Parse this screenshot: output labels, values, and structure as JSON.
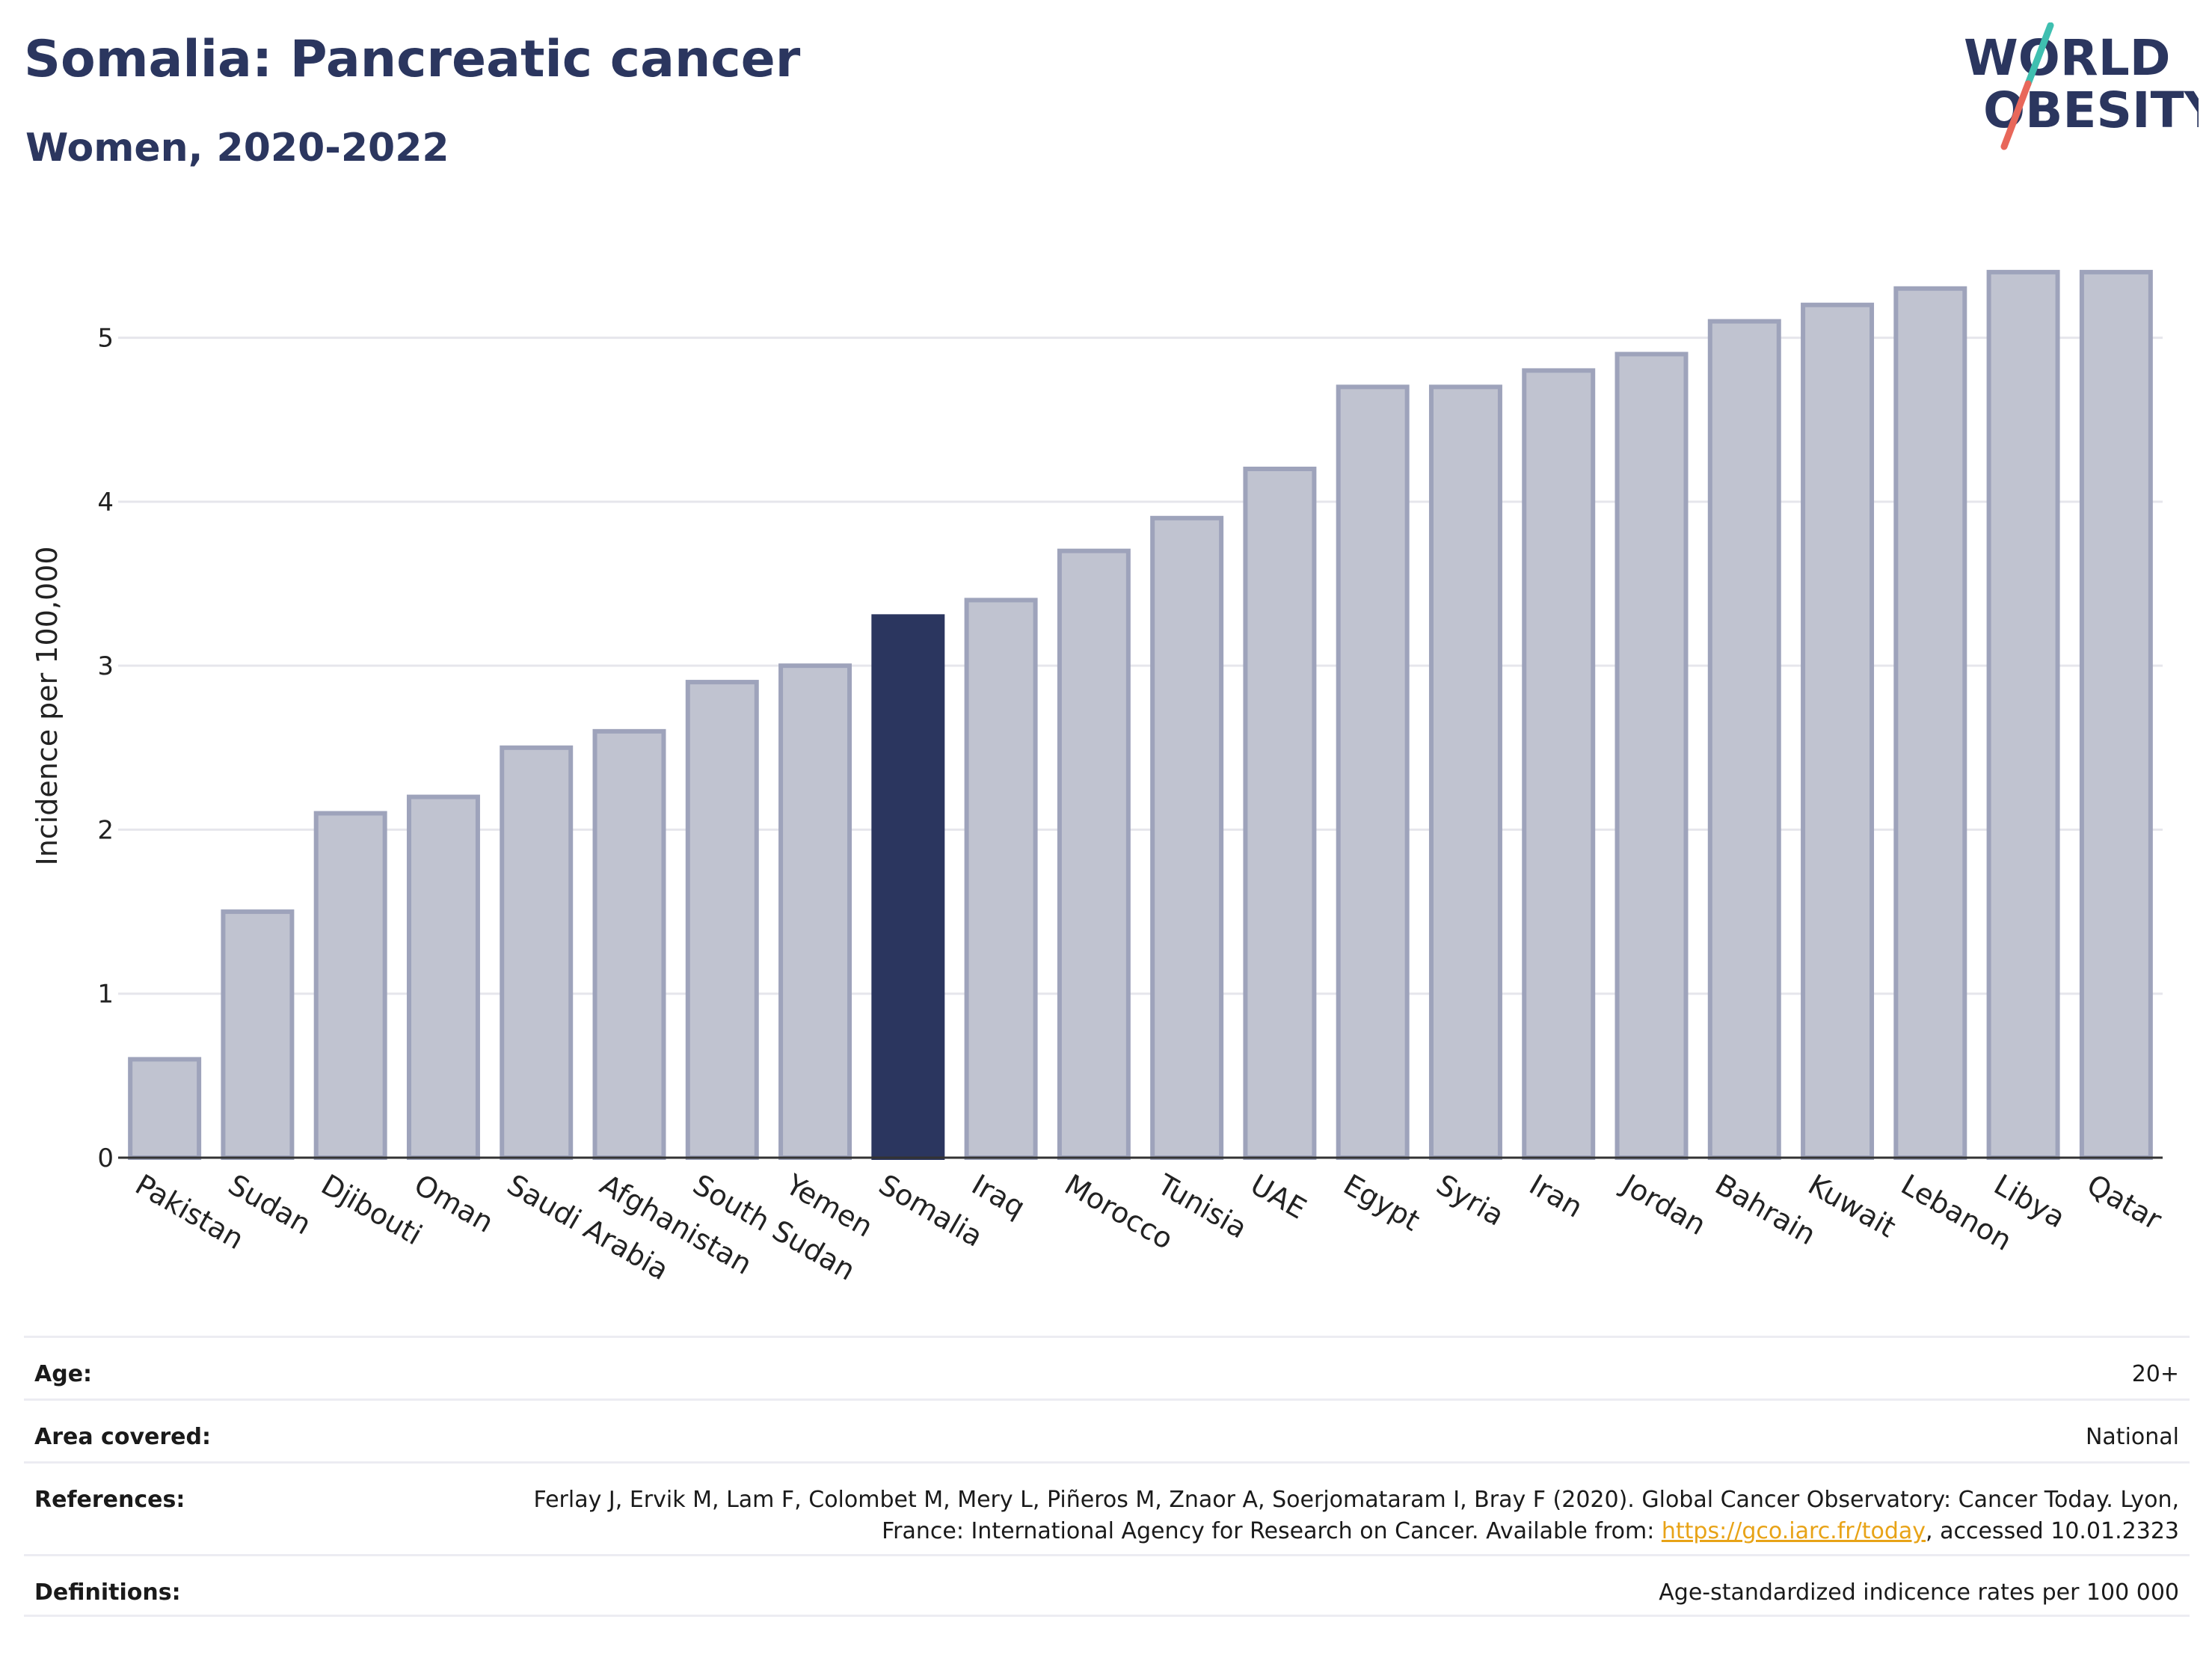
{
  "header": {
    "title": "Somalia: Pancreatic cancer",
    "subtitle": "Women, 2020-2022"
  },
  "logo": {
    "line1": "WORLD",
    "line2": "OBESITY",
    "accent_colors": [
      "#3fbfb0",
      "#e8675a"
    ]
  },
  "colors": {
    "bar_default": "#c0c3d0",
    "bar_stroke": "#9ea3bb",
    "bar_highlight": "#2b365f",
    "grid": "#e6e6ec",
    "title": "#2b365f"
  },
  "chart_data": {
    "type": "bar",
    "title": "Somalia: Pancreatic cancer",
    "subtitle": "Women, 2020-2022",
    "xlabel": "",
    "ylabel": "Incidence per 100,000",
    "ylim": [
      0,
      5.6
    ],
    "yticks": [
      0,
      1,
      2,
      3,
      4,
      5
    ],
    "grid": true,
    "highlight": "Somalia",
    "categories": [
      "Pakistan",
      "Sudan",
      "Djibouti",
      "Oman",
      "Saudi Arabia",
      "Afghanistan",
      "South Sudan",
      "Yemen",
      "Somalia",
      "Iraq",
      "Morocco",
      "Tunisia",
      "UAE",
      "Egypt",
      "Syria",
      "Iran",
      "Jordan",
      "Bahrain",
      "Kuwait",
      "Lebanon",
      "Libya",
      "Qatar"
    ],
    "values": [
      0.6,
      1.5,
      2.1,
      2.2,
      2.5,
      2.6,
      2.9,
      3.0,
      3.3,
      3.4,
      3.7,
      3.9,
      4.2,
      4.7,
      4.7,
      4.8,
      4.9,
      5.1,
      5.2,
      5.3,
      5.4,
      5.4
    ]
  },
  "meta": {
    "age_label": "Age:",
    "age_value": "20+",
    "area_label": "Area covered:",
    "area_value": "National",
    "references_label": "References:",
    "references_text_1": "Ferlay J, Ervik M, Lam F, Colombet M, Mery L, Piñeros M, Znaor A, Soerjomataram I, Bray F (2020). Global Cancer Observatory: Cancer Today. Lyon, France: International Agency for Research on Cancer. Available from: ",
    "references_link": "https://gco.iarc.fr/today",
    "references_text_2": ", accessed 10.01.2323",
    "definitions_label": "Definitions:",
    "definitions_value": "Age-standardized indicence rates per 100 000"
  }
}
